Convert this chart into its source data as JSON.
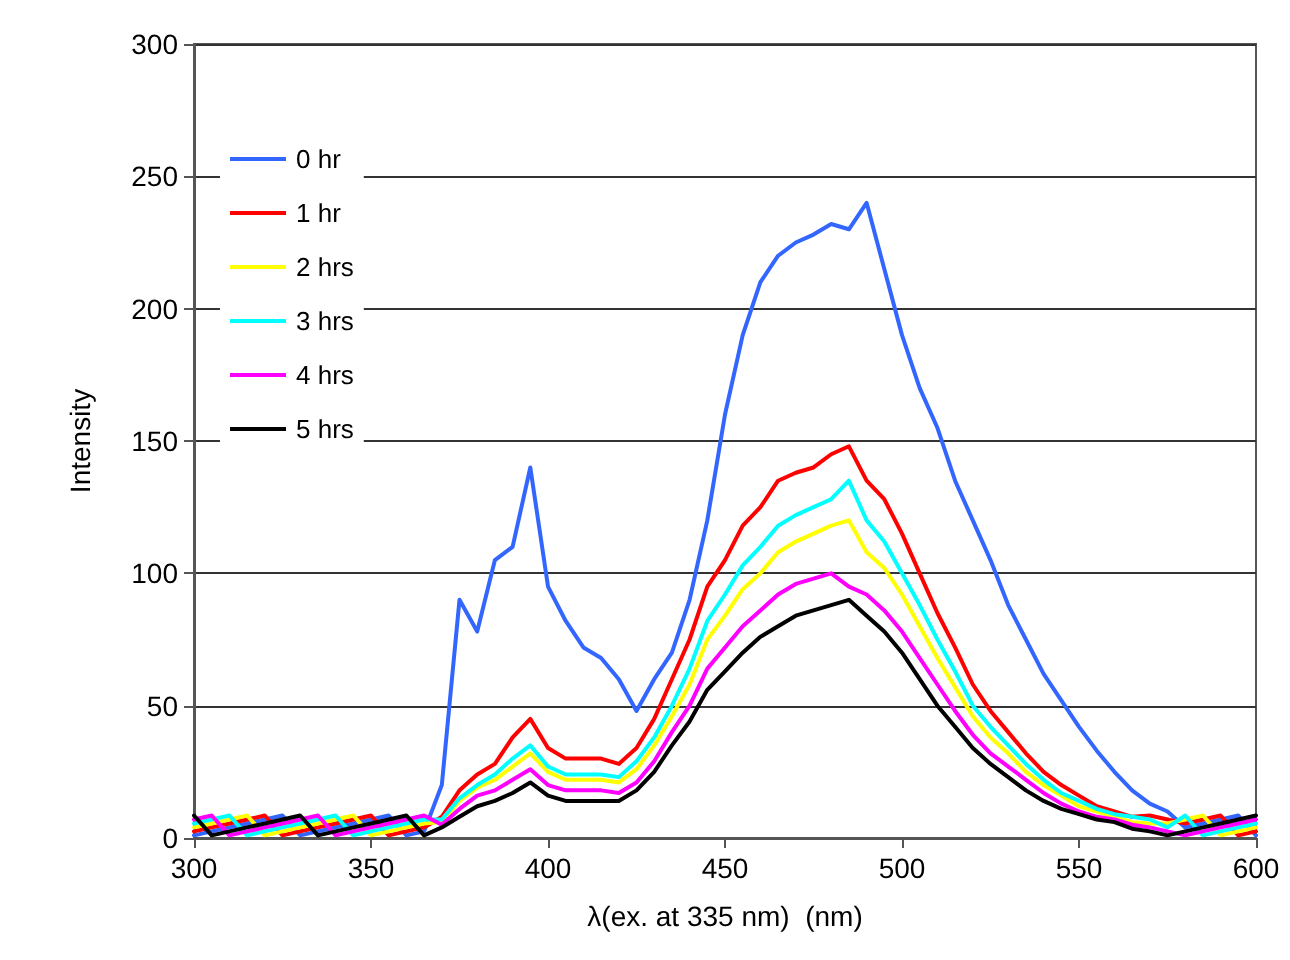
{
  "chart_data": {
    "type": "line",
    "xlabel": "λ(ex. at 335 nm)  (nm)",
    "ylabel": "Intensity",
    "x": [
      300,
      305,
      310,
      315,
      320,
      325,
      330,
      335,
      340,
      345,
      350,
      355,
      360,
      365,
      370,
      375,
      380,
      385,
      390,
      395,
      400,
      405,
      410,
      415,
      420,
      425,
      430,
      435,
      440,
      445,
      450,
      455,
      460,
      465,
      470,
      475,
      480,
      485,
      490,
      495,
      500,
      505,
      510,
      515,
      520,
      525,
      530,
      535,
      540,
      545,
      550,
      555,
      560,
      565,
      570,
      575,
      580,
      585,
      590,
      595,
      600
    ],
    "series": [
      {
        "name": "0 hr",
        "color": "#3366ff",
        "values": [
          1,
          2.5,
          4,
          5.5,
          7,
          8.5,
          1,
          2.5,
          4,
          5.5,
          7,
          8.5,
          1,
          2.5,
          20,
          90,
          78,
          105,
          110,
          140,
          95,
          82,
          72,
          68,
          60,
          48,
          60,
          70,
          90,
          120,
          160,
          190,
          210,
          220,
          225,
          228,
          232,
          230,
          240,
          215,
          190,
          170,
          155,
          135,
          120,
          105,
          88,
          75,
          62,
          52,
          42,
          33,
          25,
          18,
          13,
          10,
          4,
          5.5,
          7,
          8.5,
          1
        ]
      },
      {
        "name": "1 hr",
        "color": "#ff0000",
        "values": [
          2.5,
          4,
          5.5,
          7,
          8.5,
          1,
          2.5,
          4,
          5.5,
          7,
          8.5,
          1,
          2.5,
          4,
          8,
          18,
          24,
          28,
          38,
          45,
          34,
          30,
          30,
          30,
          28,
          34,
          45,
          60,
          75,
          95,
          105,
          118,
          125,
          135,
          138,
          140,
          145,
          148,
          135,
          128,
          115,
          100,
          85,
          72,
          58,
          48,
          40,
          32,
          25,
          20,
          16,
          12,
          10,
          8,
          8.5,
          7,
          5.5,
          7,
          8.5,
          1,
          2.5
        ]
      },
      {
        "name": "2 hrs",
        "color": "#ffff00",
        "values": [
          4,
          5.5,
          7,
          8.5,
          1,
          2.5,
          4,
          5.5,
          7,
          8.5,
          1,
          2.5,
          4,
          5.5,
          6,
          14,
          19,
          22,
          27,
          32,
          25,
          22,
          22,
          22,
          21,
          26,
          35,
          46,
          58,
          75,
          84,
          94,
          100,
          108,
          112,
          115,
          118,
          120,
          108,
          102,
          92,
          80,
          68,
          57,
          46,
          38,
          32,
          25,
          20,
          16,
          12,
          10,
          8,
          6,
          5.5,
          5.5,
          7,
          8.5,
          1,
          2.5,
          4
        ]
      },
      {
        "name": "3 hrs",
        "color": "#00ffff",
        "values": [
          5.5,
          7,
          8.5,
          1,
          2.5,
          4,
          5.5,
          7,
          8.5,
          1,
          2.5,
          4,
          5.5,
          7,
          7,
          15,
          20,
          24,
          30,
          35,
          27,
          24,
          24,
          24,
          23,
          29,
          38,
          50,
          64,
          82,
          92,
          103,
          110,
          118,
          122,
          125,
          128,
          135,
          120,
          112,
          100,
          88,
          75,
          63,
          50,
          42,
          35,
          28,
          22,
          17,
          14,
          11,
          9,
          8,
          7,
          4,
          8.5,
          1,
          2.5,
          4,
          5.5
        ]
      },
      {
        "name": "4 hrs",
        "color": "#ff00ff",
        "values": [
          7,
          8.5,
          1,
          2.5,
          4,
          5.5,
          7,
          8.5,
          1,
          2.5,
          4,
          5.5,
          7,
          8.5,
          5,
          11,
          16,
          18,
          22,
          26,
          20,
          18,
          18,
          18,
          17,
          21,
          29,
          40,
          50,
          64,
          72,
          80,
          86,
          92,
          96,
          98,
          100,
          95,
          92,
          86,
          78,
          68,
          58,
          48,
          39,
          32,
          27,
          22,
          17,
          13,
          10,
          8,
          7,
          5,
          4,
          2.5,
          1,
          2.5,
          4,
          5.5,
          7
        ]
      },
      {
        "name": "5 hrs",
        "color": "#000000",
        "values": [
          8.5,
          1,
          2.5,
          4,
          5.5,
          7,
          8.5,
          1,
          2.5,
          4,
          5.5,
          7,
          8.5,
          1,
          4,
          8,
          12,
          14,
          17,
          21,
          16,
          14,
          14,
          14,
          14,
          18,
          25,
          35,
          44,
          56,
          63,
          70,
          76,
          80,
          84,
          86,
          88,
          90,
          84,
          78,
          70,
          60,
          50,
          42,
          34,
          28,
          23,
          18,
          14,
          11,
          9,
          7,
          6,
          3.5,
          2.5,
          1,
          2.5,
          4,
          5.5,
          7,
          8.5
        ]
      }
    ],
    "xlim": [
      300,
      600
    ],
    "xticks": [
      300,
      350,
      400,
      450,
      500,
      550,
      600
    ],
    "ylim": [
      0,
      300
    ],
    "yticks": [
      0,
      50,
      100,
      150,
      200,
      250,
      300
    ],
    "grid": "y",
    "legend": "top left",
    "marker": "none",
    "line_style": "solid"
  }
}
